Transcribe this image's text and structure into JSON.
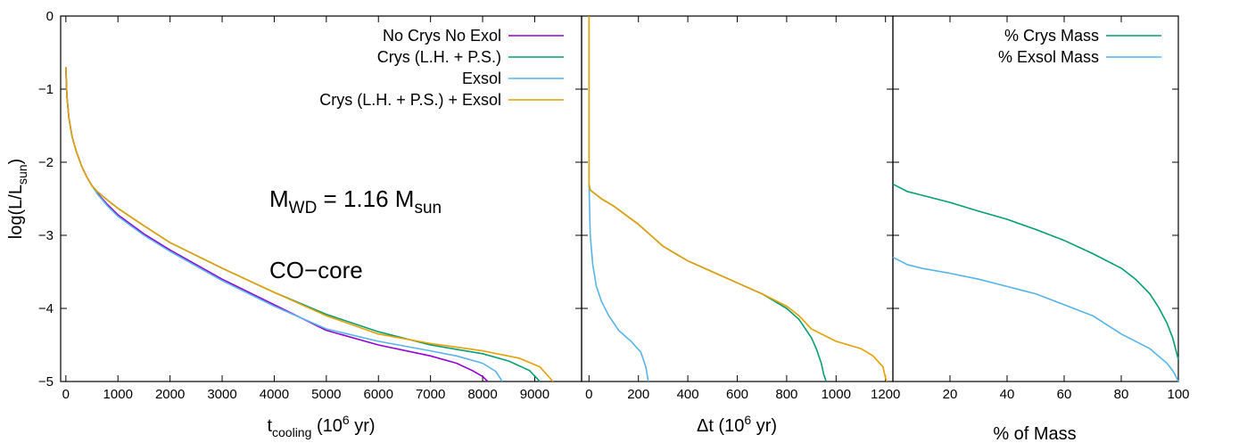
{
  "chart_data": [
    {
      "type": "line",
      "panel": "cooling-curves",
      "xlabel": {
        "main": "t",
        "sub": "cooling",
        "rest1": " (10",
        "sup": "6",
        "rest2": " yr)"
      },
      "ylabel": {
        "main": "log(L/L",
        "sub": "sun",
        "rest": ")"
      },
      "xlim": [
        -100,
        9900
      ],
      "ylim": [
        -5,
        0
      ],
      "xticks": [
        0,
        1000,
        2000,
        3000,
        4000,
        5000,
        6000,
        7000,
        8000,
        9000
      ],
      "yticks": [
        0,
        -1,
        -2,
        -3,
        -4,
        -5
      ],
      "legend_position": "top-right",
      "annotations": {
        "mass": {
          "a": "M",
          "a_sub": "WD",
          "b": " = 1.16 M",
          "b_sub": "sun"
        },
        "core": "CO−core"
      },
      "series": [
        {
          "name": "No Crys No Exol",
          "color": "#9400d3",
          "x": [
            0,
            20,
            60,
            120,
            200,
            300,
            400,
            500,
            600,
            800,
            1000,
            1500,
            2000,
            3000,
            4000,
            5000,
            6000,
            7000,
            7500,
            7800,
            8000,
            8100
          ],
          "y": [
            -0.7,
            -1.1,
            -1.4,
            -1.65,
            -1.85,
            -2.05,
            -2.2,
            -2.32,
            -2.42,
            -2.58,
            -2.72,
            -2.98,
            -3.2,
            -3.6,
            -3.95,
            -4.3,
            -4.5,
            -4.65,
            -4.75,
            -4.85,
            -4.93,
            -5.0
          ]
        },
        {
          "name": "Crys (L.H. + P.S.)",
          "color": "#009e73",
          "x": [
            0,
            20,
            60,
            120,
            200,
            300,
            400,
            500,
            600,
            800,
            1000,
            1500,
            2000,
            3000,
            4000,
            5000,
            6000,
            7000,
            8000,
            8500,
            8900,
            9100
          ],
          "y": [
            -0.7,
            -1.1,
            -1.4,
            -1.65,
            -1.85,
            -2.05,
            -2.2,
            -2.32,
            -2.4,
            -2.52,
            -2.63,
            -2.87,
            -3.1,
            -3.45,
            -3.78,
            -4.08,
            -4.32,
            -4.5,
            -4.62,
            -4.72,
            -4.85,
            -5.0
          ]
        },
        {
          "name": "Exsol",
          "color": "#56b4e9",
          "x": [
            0,
            20,
            60,
            120,
            200,
            300,
            400,
            500,
            600,
            800,
            1000,
            1500,
            2000,
            3000,
            4000,
            5000,
            6000,
            7000,
            7500,
            8000,
            8250,
            8380
          ],
          "y": [
            -0.7,
            -1.1,
            -1.4,
            -1.65,
            -1.85,
            -2.05,
            -2.2,
            -2.32,
            -2.43,
            -2.6,
            -2.74,
            -3.0,
            -3.22,
            -3.62,
            -3.97,
            -4.28,
            -4.45,
            -4.58,
            -4.65,
            -4.75,
            -4.86,
            -5.0
          ]
        },
        {
          "name": "Crys (L.H. + P.S.) + Exsol",
          "color": "#e69f00",
          "x": [
            0,
            20,
            60,
            120,
            200,
            300,
            400,
            500,
            600,
            800,
            1000,
            1500,
            2000,
            3000,
            4000,
            5000,
            6000,
            7000,
            8000,
            8700,
            9100,
            9350
          ],
          "y": [
            -0.7,
            -1.1,
            -1.4,
            -1.65,
            -1.85,
            -2.05,
            -2.2,
            -2.32,
            -2.4,
            -2.52,
            -2.63,
            -2.87,
            -3.1,
            -3.45,
            -3.78,
            -4.1,
            -4.35,
            -4.48,
            -4.58,
            -4.68,
            -4.8,
            -5.0
          ]
        }
      ]
    },
    {
      "type": "line",
      "panel": "delay",
      "xlabel": {
        "main": "Δt (10",
        "sup": "6",
        "rest": " yr)"
      },
      "xlim": [
        -30,
        1230
      ],
      "ylim": [
        -5,
        0
      ],
      "xticks": [
        0,
        200,
        400,
        600,
        800,
        1000,
        1200
      ],
      "series": [
        {
          "name": "Crys (L.H. + P.S.)",
          "color": "#009e73",
          "x": [
            0,
            0,
            0,
            5,
            50,
            100,
            200,
            300,
            400,
            500,
            600,
            700,
            800,
            850,
            900,
            920,
            940,
            950,
            960
          ],
          "y": [
            0,
            -1.5,
            -2.3,
            -2.38,
            -2.5,
            -2.6,
            -2.85,
            -3.15,
            -3.35,
            -3.5,
            -3.65,
            -3.8,
            -4.0,
            -4.15,
            -4.4,
            -4.55,
            -4.75,
            -4.9,
            -5.0
          ]
        },
        {
          "name": "Exsol",
          "color": "#56b4e9",
          "x": [
            0,
            5,
            15,
            30,
            50,
            80,
            120,
            170,
            210,
            230,
            240
          ],
          "y": [
            -2.3,
            -3.0,
            -3.4,
            -3.7,
            -3.9,
            -4.1,
            -4.3,
            -4.45,
            -4.6,
            -4.8,
            -5.0
          ]
        },
        {
          "name": "Crys (L.H. + P.S.) + Exsol",
          "color": "#e69f00",
          "x": [
            0,
            0,
            5,
            50,
            100,
            200,
            300,
            400,
            500,
            600,
            700,
            800,
            850,
            900,
            1000,
            1100,
            1150,
            1190,
            1200,
            1205
          ],
          "y": [
            0,
            -2.3,
            -2.38,
            -2.5,
            -2.6,
            -2.85,
            -3.15,
            -3.35,
            -3.5,
            -3.65,
            -3.8,
            -3.97,
            -4.1,
            -4.28,
            -4.45,
            -4.55,
            -4.65,
            -4.8,
            -4.95,
            -5.0
          ]
        }
      ]
    },
    {
      "type": "line",
      "panel": "mass-fraction",
      "xlabel": "% of Mass",
      "xlim": [
        0,
        100
      ],
      "ylim": [
        -5,
        0
      ],
      "xticks": [
        20,
        40,
        60,
        80,
        100
      ],
      "legend_position": "top-right",
      "series": [
        {
          "name": "% Crys Mass",
          "color": "#009e73",
          "x": [
            0,
            5,
            10,
            20,
            30,
            40,
            50,
            60,
            70,
            80,
            85,
            90,
            93,
            96,
            98,
            99,
            100
          ],
          "y": [
            -2.3,
            -2.4,
            -2.45,
            -2.55,
            -2.67,
            -2.78,
            -2.92,
            -3.07,
            -3.25,
            -3.45,
            -3.6,
            -3.8,
            -3.98,
            -4.2,
            -4.4,
            -4.55,
            -4.7
          ]
        },
        {
          "name": "% Exsol Mass",
          "color": "#56b4e9",
          "x": [
            0,
            5,
            10,
            20,
            30,
            40,
            50,
            60,
            70,
            80,
            85,
            90,
            93,
            96,
            98,
            99,
            100
          ],
          "y": [
            -3.3,
            -3.4,
            -3.45,
            -3.52,
            -3.6,
            -3.7,
            -3.8,
            -3.95,
            -4.1,
            -4.35,
            -4.45,
            -4.55,
            -4.65,
            -4.75,
            -4.85,
            -4.92,
            -5.0
          ]
        }
      ]
    }
  ]
}
